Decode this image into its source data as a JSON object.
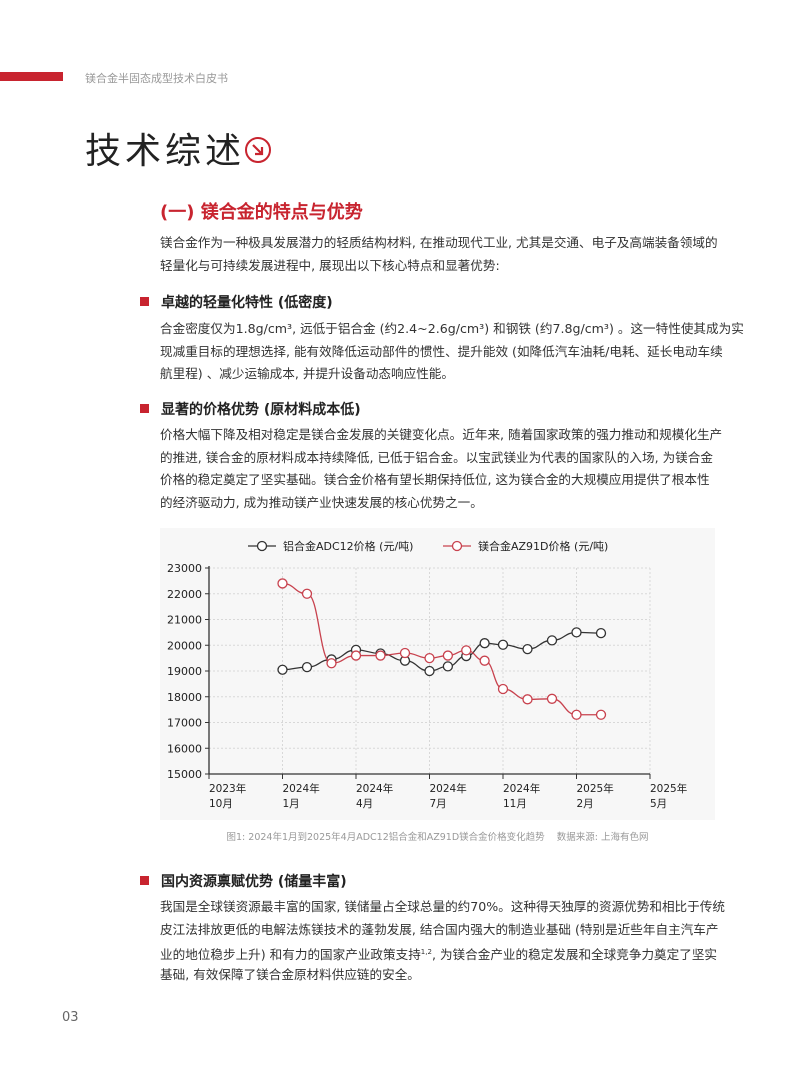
{
  "header": {
    "running_title": "镁合金半固态成型技术白皮书",
    "accent_color": "#c8242f"
  },
  "title": {
    "text": "技术综述",
    "icon": "arrow-down-right-circle-icon"
  },
  "section": {
    "heading": "(一) 镁合金的特点与优势"
  },
  "intro": {
    "lines": [
      "镁合金作为一种极具发展潜力的轻质结构材料, 在推动现代工业, 尤其是交通、电子及高端装备领域的",
      "轻量化与可持续发展进程中, 展现出以下核心特点和显著优势:"
    ]
  },
  "bullets": [
    {
      "heading": "卓越的轻量化特性 (低密度)",
      "lines": [
        "合金密度仅为1.8g/cm³, 远低于铝合金 (约2.4~2.6g/cm³) 和钢铁 (约7.8g/cm³) 。这一特性使其成为实",
        "现减重目标的理想选择, 能有效降低运动部件的惯性、提升能效 (如降低汽车油耗/电耗、延长电动车续",
        "航里程) 、减少运输成本, 并提升设备动态响应性能。"
      ]
    },
    {
      "heading": "显著的价格优势 (原材料成本低)",
      "lines": [
        "价格大幅下降及相对稳定是镁合金发展的关键变化点。近年来, 随着国家政策的强力推动和规模化生产",
        "的推进, 镁合金的原材料成本持续降低, 已低于铝合金。以宝武镁业为代表的国家队的入场, 为镁合金",
        "价格的稳定奠定了坚实基础。镁合金价格有望长期保持低位, 这为镁合金的大规模应用提供了根本性",
        "的经济驱动力, 成为推动镁产业快速发展的核心优势之一。"
      ]
    },
    {
      "heading": "国内资源禀赋优势 (储量丰富)",
      "lines": [
        "我国是全球镁资源最丰富的国家, 镁储量占全球总量的约70%。这种得天独厚的资源优势和相比于传统",
        "皮江法排放更低的电解法炼镁技术的蓬勃发展, 结合国内强大的制造业基础 (特别是近些年自主汽车产",
        "业的地位稳步上升) 和有力的国家产业政策支持",
        "基础, 有效保障了镁合金原材料供应链的安全。"
      ],
      "superscript": "1,2",
      "line3_tail": ", 为镁合金产业的稳定发展和全球竞争力奠定了坚实"
    }
  ],
  "figure": {
    "caption": "图1: 2024年1月到2025年4月ADC12铝合金和AZ91D镁合金价格变化趋势    数据来源: 上海有色网"
  },
  "chart_data": {
    "type": "line",
    "title": "",
    "xlabel": "",
    "ylabel": "",
    "ylim": [
      15000,
      23000
    ],
    "yticks": [
      "23000",
      "22000",
      "21000",
      "20000",
      "19000",
      "18000",
      "17000",
      "16000",
      "15000"
    ],
    "xticks": [
      {
        "date": "2023-10",
        "year": "2023年",
        "month": "10月"
      },
      {
        "date": "2024-01",
        "year": "2024年",
        "month": "1月"
      },
      {
        "date": "2024-04",
        "year": "2024年",
        "month": "4月"
      },
      {
        "date": "2024-07",
        "year": "2024年",
        "month": "7月"
      },
      {
        "date": "2024-11",
        "year": "2024年",
        "month": "11月"
      },
      {
        "date": "2025-02",
        "year": "2025年",
        "month": "2月"
      },
      {
        "date": "2025-05",
        "year": "2025年",
        "month": "5月"
      }
    ],
    "grid": true,
    "legend_position": "top",
    "x": [
      "2024-01",
      "2024-02",
      "2024-03",
      "2024-04",
      "2024-05",
      "2024-06",
      "2024-07",
      "2024-08",
      "2024-09",
      "2024-10",
      "2024-11",
      "2024-12",
      "2025-01",
      "2025-02",
      "2025-03"
    ],
    "series": [
      {
        "name": "铝合金ADC12价格  (元/吨)",
        "color": "#333333",
        "values": [
          19050,
          19150,
          19450,
          19820,
          19680,
          19400,
          19000,
          19180,
          19580,
          20080,
          20020,
          19850,
          20190,
          20500,
          20470
        ]
      },
      {
        "name": "镁合金AZ91D价格 (元/吨)",
        "color": "#c8424e",
        "values": [
          22400,
          22000,
          19300,
          19600,
          19600,
          19700,
          19500,
          19600,
          19800,
          19400,
          18300,
          17900,
          17920,
          17300,
          17300
        ]
      }
    ]
  },
  "footer": {
    "page_number": "03"
  }
}
